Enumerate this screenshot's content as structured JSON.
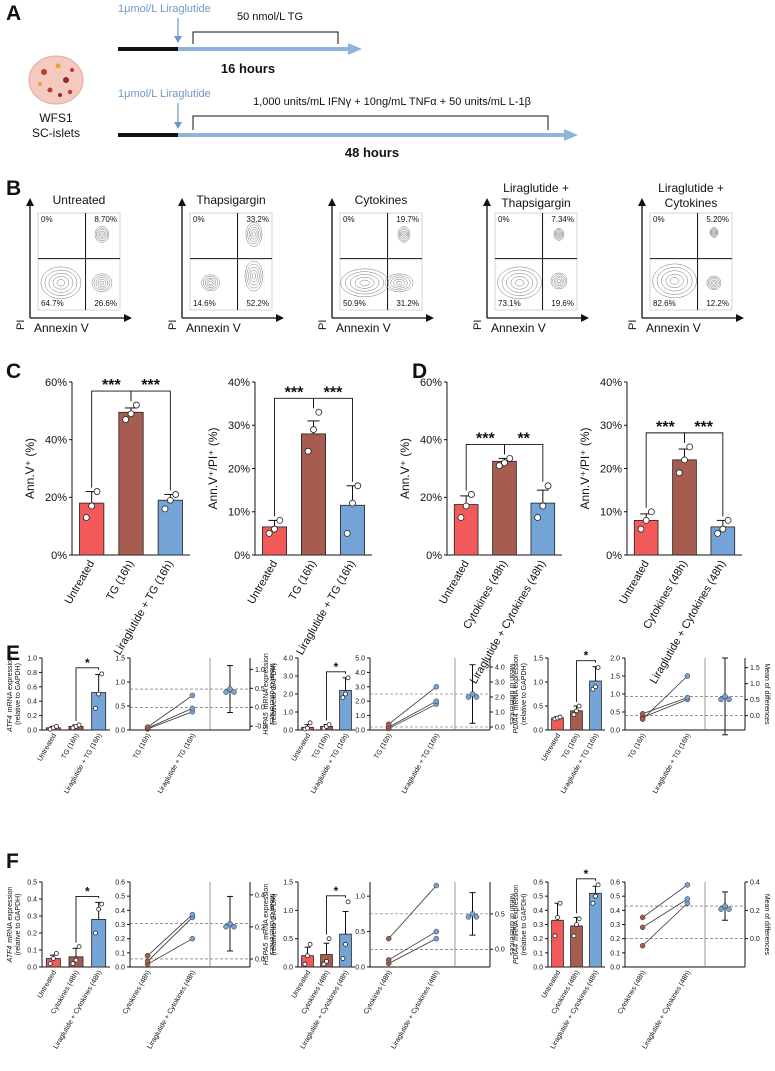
{
  "panel_labels": [
    "A",
    "B",
    "C",
    "D",
    "E",
    "F"
  ],
  "timeline": {
    "treatment_1": "1μmol/L Liraglutide",
    "stimulus_1": "50 nmol/L TG",
    "duration_1": "16 hours",
    "treatment_2": "1μmol/L Liraglutide",
    "stimulus_2": "1,000 units/mL IFNγ + 10ng/mL TNFα + 50 units/mL L-1β",
    "duration_2": "48 hours",
    "sample": [
      "WFS1",
      "SC-islets"
    ]
  },
  "flow": {
    "x_label": "Annexin V",
    "y_label": "PI",
    "plots": [
      {
        "title": [
          "Untreated"
        ],
        "quadrants": [
          "0%",
          "8.70%",
          "64.7%",
          "26.6%"
        ]
      },
      {
        "title": [
          "Thapsigargin"
        ],
        "quadrants": [
          "0%",
          "33.2%",
          "14.6%",
          "52.2%"
        ]
      },
      {
        "title": [
          "Cytokines"
        ],
        "quadrants": [
          "0%",
          "19.7%",
          "50.9%",
          "31.2%"
        ]
      },
      {
        "title": [
          "Liraglutide +",
          "Thapsigargin"
        ],
        "quadrants": [
          "0%",
          "7.34%",
          "73.1%",
          "19.6%"
        ]
      },
      {
        "title": [
          "Liraglutide +",
          "Cytokines"
        ],
        "quadrants": [
          "0%",
          "5.20%",
          "82.6%",
          "12.2%"
        ]
      }
    ]
  },
  "chart_data": [
    {
      "type": "bar",
      "ylabel": "Ann.V⁺ (%)",
      "categories": [
        "Untreated",
        "TG (16h)",
        "Liraglutide + TG (16h)"
      ],
      "values": [
        18,
        49.5,
        19
      ],
      "errors": [
        4,
        1.5,
        2
      ],
      "points": [
        [
          13,
          17,
          22
        ],
        [
          47,
          49,
          52
        ],
        [
          16,
          19,
          21
        ]
      ],
      "colors": [
        "#f25a5a",
        "#a65d50",
        "#74a3d8"
      ],
      "ylim": [
        0,
        60
      ],
      "yticks": [
        {
          "value": 0,
          "label": "0%"
        },
        {
          "value": 20,
          "label": "20%"
        },
        {
          "value": 40,
          "label": "40%"
        },
        {
          "value": 60,
          "label": "60%"
        }
      ],
      "significance": [
        "***",
        "***"
      ]
    },
    {
      "type": "bar",
      "ylabel": "Ann.V⁺/PI⁺ (%)",
      "categories": [
        "Untreated",
        "TG (16h)",
        "Liraglutide + TG (16h)"
      ],
      "values": [
        6.5,
        28,
        11.5
      ],
      "errors": [
        1.5,
        3,
        4.5
      ],
      "points": [
        [
          5,
          6,
          8
        ],
        [
          24,
          29,
          33
        ],
        [
          5,
          12,
          16
        ]
      ],
      "colors": [
        "#f25a5a",
        "#a65d50",
        "#74a3d8"
      ],
      "ylim": [
        0,
        40
      ],
      "yticks": [
        {
          "value": 0,
          "label": "0%"
        },
        {
          "value": 10,
          "label": "10%"
        },
        {
          "value": 20,
          "label": "20%"
        },
        {
          "value": 30,
          "label": "30%"
        },
        {
          "value": 40,
          "label": "40%"
        }
      ],
      "significance": [
        "***",
        "***"
      ]
    },
    {
      "type": "bar",
      "ylabel": "Ann.V⁺ (%)",
      "categories": [
        "Untreated",
        "Cytokines (48h)",
        "Liraglutide + Cytokines (48h)"
      ],
      "values": [
        17.5,
        32.5,
        18
      ],
      "errors": [
        3,
        1,
        4.5
      ],
      "points": [
        [
          13,
          17,
          21
        ],
        [
          31,
          32,
          33.5
        ],
        [
          13,
          17,
          24
        ]
      ],
      "colors": [
        "#f25a5a",
        "#a65d50",
        "#74a3d8"
      ],
      "ylim": [
        0,
        60
      ],
      "yticks": [
        {
          "value": 0,
          "label": "0%"
        },
        {
          "value": 20,
          "label": "20%"
        },
        {
          "value": 40,
          "label": "40%"
        },
        {
          "value": 60,
          "label": "60%"
        }
      ],
      "significance": [
        "***",
        "**"
      ]
    },
    {
      "type": "bar",
      "ylabel": "Ann.V⁺/PI⁺ (%)",
      "categories": [
        "Untreated",
        "Cytokines (48h)",
        "Liraglutide + Cytokines (48h)"
      ],
      "values": [
        8,
        22,
        6.5
      ],
      "errors": [
        1.5,
        2.5,
        1.5
      ],
      "points": [
        [
          6,
          8,
          10
        ],
        [
          19,
          22,
          25
        ],
        [
          5,
          6,
          8
        ]
      ],
      "colors": [
        "#f25a5a",
        "#a65d50",
        "#74a3d8"
      ],
      "ylim": [
        0,
        40
      ],
      "yticks": [
        {
          "value": 0,
          "label": "0%"
        },
        {
          "value": 10,
          "label": "10%"
        },
        {
          "value": 20,
          "label": "20%"
        },
        {
          "value": 30,
          "label": "30%"
        },
        {
          "value": 40,
          "label": "40%"
        }
      ],
      "significance": [
        "***",
        "***"
      ]
    },
    {
      "type": "bar",
      "gene": "ATF4",
      "ylabel": [
        "mRNA expression",
        "(relative to GAPDH)"
      ],
      "categories": [
        "Untreated",
        "TG (16h)",
        "Liraglutide + TG (16h)"
      ],
      "values": [
        0.03,
        0.05,
        0.52
      ],
      "errors": [
        0.02,
        0.02,
        0.25
      ],
      "points": [
        [
          0.01,
          0.03,
          0.05
        ],
        [
          0.03,
          0.05,
          0.07
        ],
        [
          0.3,
          0.5,
          0.78
        ]
      ],
      "colors": [
        "#f25a5a",
        "#a65d50",
        "#74a3d8"
      ],
      "ylim": [
        0,
        1
      ],
      "yticks": [
        {
          "value": 0,
          "label": "0.0"
        },
        0.2,
        0.4,
        0.6,
        0.8,
        {
          "value": 1,
          "label": "1.0"
        }
      ],
      "significance": [
        "*"
      ]
    },
    {
      "type": "paired",
      "categories": [
        "TG (16h)",
        "Liraglutide + TG (16h)"
      ],
      "series": [
        {
          "values": [
            0.02,
            0.38
          ]
        },
        {
          "values": [
            0.04,
            0.45
          ]
        },
        {
          "values": [
            0.06,
            0.72
          ]
        }
      ],
      "colors": [
        "#a65d50",
        "#74a3d8"
      ],
      "difference": {
        "value": 0.48,
        "error": 0.62
      },
      "ylim": [
        0,
        1.5
      ],
      "yticks": [
        {
          "value": 0,
          "label": "0.0"
        },
        0.5,
        {
          "value": 1,
          "label": "1.0"
        },
        1.5
      ],
      "y2lim": [
        -0.6,
        1.3
      ],
      "y2ticks": [
        -0.5,
        {
          "value": 0,
          "label": "0.0"
        },
        0.5,
        {
          "value": 1,
          "label": "1.0"
        }
      ],
      "y2label": "Mean of differences"
    },
    {
      "type": "bar",
      "gene": "HSPA5",
      "ylabel": [
        "mRNA expression",
        "(relative to GAPDH)"
      ],
      "categories": [
        "Untreated",
        "TG (16h)",
        "Liraglutide + TG (16h)"
      ],
      "values": [
        0.15,
        0.2,
        2.2
      ],
      "errors": [
        0.15,
        0.1,
        0.7
      ],
      "points": [
        [
          0.05,
          0.1,
          0.4
        ],
        [
          0.1,
          0.2,
          0.3
        ],
        [
          1.8,
          2.0,
          2.9
        ]
      ],
      "colors": [
        "#f25a5a",
        "#a65d50",
        "#74a3d8"
      ],
      "ylim": [
        0,
        4
      ],
      "yticks": [
        {
          "value": 0,
          "label": "0.0"
        },
        {
          "value": 1,
          "label": "1.0"
        },
        {
          "value": 2,
          "label": "2.0"
        },
        {
          "value": 3,
          "label": "3.0"
        },
        {
          "value": 4,
          "label": "4.0"
        }
      ],
      "significance": [
        "*"
      ]
    },
    {
      "type": "paired",
      "categories": [
        "TG (16h)",
        "Liraglutide + TG (16h)"
      ],
      "series": [
        {
          "values": [
            0.1,
            1.8
          ]
        },
        {
          "values": [
            0.2,
            2.0
          ]
        },
        {
          "values": [
            0.4,
            3.0
          ]
        }
      ],
      "colors": [
        "#a65d50",
        "#74a3d8"
      ],
      "difference": {
        "value": 2.2,
        "error": 1.95
      },
      "ylim": [
        0,
        5
      ],
      "yticks": [
        {
          "value": 0,
          "label": "0.0"
        },
        {
          "value": 1,
          "label": "1.0"
        },
        {
          "value": 2,
          "label": "2.0"
        },
        {
          "value": 3,
          "label": "3.0"
        },
        {
          "value": 4,
          "label": "4.0"
        },
        {
          "value": 5,
          "label": "5.0"
        }
      ],
      "y2lim": [
        -0.2,
        4.6
      ],
      "y2ticks": [
        {
          "value": 0,
          "label": "0.0"
        },
        {
          "value": 1,
          "label": "1.0"
        },
        {
          "value": 2,
          "label": "2.0"
        },
        {
          "value": 3,
          "label": "3.0"
        },
        {
          "value": 4,
          "label": "4.0"
        }
      ],
      "y2label": "Mean of differences"
    },
    {
      "type": "bar",
      "gene": "PDIA4",
      "ylabel": [
        "mRNA expression",
        "(relative to GAPDH)"
      ],
      "categories": [
        "Untreated",
        "TG (16h)",
        "Liraglutide + TG (16h)"
      ],
      "values": [
        0.25,
        0.4,
        1.02
      ],
      "errors": [
        0.03,
        0.1,
        0.3
      ],
      "points": [
        [
          0.23,
          0.25,
          0.27
        ],
        [
          0.32,
          0.4,
          0.5
        ],
        [
          0.85,
          0.9,
          1.3
        ]
      ],
      "colors": [
        "#f25a5a",
        "#a65d50",
        "#74a3d8"
      ],
      "ylim": [
        0,
        1.5
      ],
      "yticks": [
        {
          "value": 0,
          "label": "0.0"
        },
        0.5,
        {
          "value": 1,
          "label": "1.0"
        },
        1.5
      ],
      "significance": [
        "*"
      ]
    },
    {
      "type": "paired",
      "categories": [
        "TG (16h)",
        "Liraglutide + TG (16h)"
      ],
      "series": [
        {
          "values": [
            0.35,
            0.85
          ]
        },
        {
          "values": [
            0.45,
            0.9
          ]
        },
        {
          "values": [
            0.3,
            1.5
          ]
        }
      ],
      "colors": [
        "#a65d50",
        "#74a3d8"
      ],
      "difference": {
        "value": 0.6,
        "error": 1.2
      },
      "ylim": [
        0,
        2
      ],
      "yticks": [
        {
          "value": 0,
          "label": "0.0"
        },
        0.5,
        {
          "value": 1,
          "label": "1.0"
        },
        1.5,
        {
          "value": 2,
          "label": "2.0"
        }
      ],
      "y2lim": [
        -0.45,
        1.8
      ],
      "y2ticks": [
        {
          "value": 0,
          "label": "0.0"
        },
        0.5,
        {
          "value": 1,
          "label": "1.0"
        },
        1.5
      ],
      "y2label": "Mean of differences"
    },
    {
      "type": "bar",
      "gene": "ATF4",
      "ylabel": [
        "mRNA expression",
        "(relative to GAPDH)"
      ],
      "categories": [
        "Untreated",
        "Cytokines (48h)",
        "Liraglutide + Cytokines (48h)"
      ],
      "values": [
        0.05,
        0.06,
        0.28
      ],
      "errors": [
        0.02,
        0.05,
        0.1
      ],
      "points": [
        [
          0.02,
          0.05,
          0.08
        ],
        [
          0.02,
          0.04,
          0.12
        ],
        [
          0.2,
          0.34,
          0.37
        ]
      ],
      "colors": [
        "#f25a5a",
        "#a65d50",
        "#74a3d8"
      ],
      "ylim": [
        0,
        0.5
      ],
      "yticks": [
        {
          "value": 0,
          "label": "0.0"
        },
        0.1,
        0.2,
        0.3,
        0.4,
        0.5
      ],
      "significance": [
        "*"
      ]
    },
    {
      "type": "paired",
      "categories": [
        "Cytokines (48h)",
        "Liraglutide + Cytokines (48h)"
      ],
      "series": [
        {
          "values": [
            0.02,
            0.2
          ]
        },
        {
          "values": [
            0.04,
            0.35
          ]
        },
        {
          "values": [
            0.08,
            0.37
          ]
        }
      ],
      "colors": [
        "#a65d50",
        "#74a3d8"
      ],
      "difference": {
        "value": 0.22,
        "error": 0.17
      },
      "ylim": [
        0,
        0.6
      ],
      "yticks": [
        {
          "value": 0,
          "label": "0.0"
        },
        0.1,
        0.2,
        0.3,
        0.4,
        0.5,
        0.6
      ],
      "y2lim": [
        -0.05,
        0.48
      ],
      "y2ticks": [
        {
          "value": 0,
          "label": "0.0"
        },
        0.2,
        0.4
      ],
      "y2label": "Mean of differences"
    },
    {
      "type": "bar",
      "gene": "HSPA5",
      "ylabel": [
        "mRNA expression",
        "(relative to GAPDH)"
      ],
      "categories": [
        "Untreated",
        "Cytokines (48h)",
        "Liraglutide + Cytokines (48h)"
      ],
      "values": [
        0.2,
        0.22,
        0.58
      ],
      "errors": [
        0.15,
        0.2,
        0.4
      ],
      "points": [
        [
          0.05,
          0.2,
          0.4
        ],
        [
          0.05,
          0.1,
          0.5
        ],
        [
          0.15,
          0.4,
          1.15
        ]
      ],
      "colors": [
        "#f25a5a",
        "#a65d50",
        "#74a3d8"
      ],
      "ylim": [
        0,
        1.5
      ],
      "yticks": [
        {
          "value": 0,
          "label": "0.0"
        },
        0.5,
        {
          "value": 1,
          "label": "1.0"
        },
        1.5
      ],
      "significance": [
        "*"
      ]
    },
    {
      "type": "paired",
      "categories": [
        "Cytokines (48h)",
        "Liraglutide + Cytokines (48h)"
      ],
      "series": [
        {
          "values": [
            0.05,
            0.4
          ]
        },
        {
          "values": [
            0.1,
            0.5
          ]
        },
        {
          "values": [
            0.4,
            1.15
          ]
        }
      ],
      "colors": [
        "#a65d50",
        "#74a3d8"
      ],
      "difference": {
        "value": 0.5,
        "error": 0.3
      },
      "ylim": [
        0,
        1.2
      ],
      "yticks": [
        {
          "value": 0,
          "label": "0.0"
        },
        0.5,
        {
          "value": 1,
          "label": "1.0"
        }
      ],
      "y2lim": [
        -0.25,
        0.95
      ],
      "y2ticks": [
        {
          "value": 0,
          "label": "0.0"
        },
        0.5
      ],
      "y2label": "Mean of differences"
    },
    {
      "type": "bar",
      "gene": "PDIA4",
      "ylabel": [
        "mRNA expression",
        "(relative to GAPDH)"
      ],
      "categories": [
        "Untreated",
        "Cytokines (48h)",
        "Liraglutide + Cytokines (48h)"
      ],
      "values": [
        0.33,
        0.29,
        0.52
      ],
      "errors": [
        0.12,
        0.06,
        0.05
      ],
      "points": [
        [
          0.22,
          0.35,
          0.45
        ],
        [
          0.22,
          0.3,
          0.34
        ],
        [
          0.45,
          0.5,
          0.58
        ]
      ],
      "colors": [
        "#f25a5a",
        "#a65d50",
        "#74a3d8"
      ],
      "ylim": [
        0,
        0.6
      ],
      "yticks": [
        {
          "value": 0,
          "label": "0.0"
        },
        0.1,
        0.2,
        0.3,
        0.4,
        0.5,
        0.6
      ],
      "significance": [
        "*"
      ]
    },
    {
      "type": "paired",
      "categories": [
        "Cytokines (48h)",
        "Liraglutide + Cytokines (48h)"
      ],
      "series": [
        {
          "values": [
            0.15,
            0.45
          ]
        },
        {
          "values": [
            0.28,
            0.48
          ]
        },
        {
          "values": [
            0.35,
            0.58
          ]
        }
      ],
      "colors": [
        "#a65d50",
        "#74a3d8"
      ],
      "difference": {
        "value": 0.23,
        "error": 0.1
      },
      "ylim": [
        0,
        0.6
      ],
      "yticks": [
        {
          "value": 0,
          "label": "0.0"
        },
        0.1,
        0.2,
        0.3,
        0.4,
        0.5,
        0.6
      ],
      "y2lim": [
        -0.2,
        0.4
      ],
      "y2ticks": [
        {
          "value": 0,
          "label": "0.0"
        },
        0.2,
        0.4
      ],
      "y2label": "Mean of differences"
    }
  ]
}
